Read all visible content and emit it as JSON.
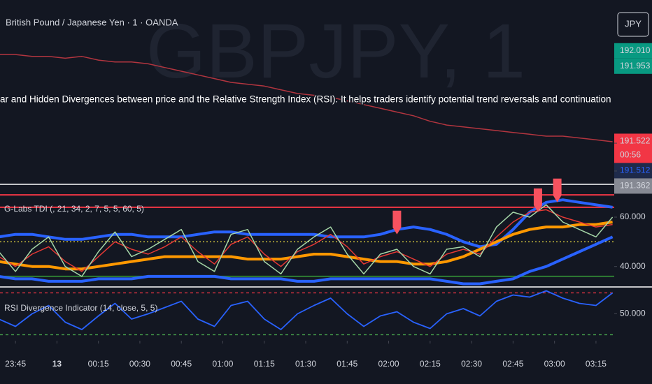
{
  "header": {
    "title": "British Pound / Japanese Yen · 1 · OANDA",
    "currency_button": "JPY",
    "watermark": "GBPJPY, 1",
    "overlay_text": "ar and Hidden Divergences between price and the Relative Strength Index (RSI). It helps traders identify potential trend reversals and continuation patterns by analy"
  },
  "countdown": "00:56",
  "chart_data": [
    {
      "type": "line",
      "xlim": [
        -5.6,
        216.6
      ],
      "ylim": [
        191.294,
        192.284
      ],
      "x": [
        -6,
        0,
        6,
        12,
        18,
        24,
        30,
        36,
        42,
        48,
        54,
        60,
        66,
        72,
        78,
        84,
        90,
        96,
        102,
        108,
        114,
        120,
        126,
        132,
        138,
        144,
        150,
        156,
        162,
        168,
        174,
        180,
        186,
        192,
        198,
        204,
        210,
        216
      ],
      "yticks": [
        {
          "value": 192.01,
          "label": "192.010"
        },
        {
          "value": 191.953,
          "label": "191.953"
        },
        {
          "value": 191.522,
          "label": "191.522"
        },
        {
          "value": 191.512,
          "label": "191.512"
        },
        {
          "value": 191.362,
          "label": "191.362"
        }
      ],
      "ytick_colors": [
        "#089981",
        "#089981",
        "#f23645",
        "#1e2a4a",
        "#868993"
      ],
      "series": [
        {
          "color": "#b2353f",
          "line_width": 1.5,
          "values": [
            191.99,
            191.99,
            191.98,
            191.98,
            191.97,
            191.98,
            191.96,
            191.95,
            191.95,
            191.94,
            191.92,
            191.9,
            191.88,
            191.86,
            191.84,
            191.83,
            191.82,
            191.8,
            191.78,
            191.77,
            191.76,
            191.74,
            191.72,
            191.7,
            191.68,
            191.66,
            191.63,
            191.61,
            191.6,
            191.59,
            191.58,
            191.57,
            191.56,
            191.55,
            191.55,
            191.54,
            191.53,
            191.52
          ]
        }
      ]
    },
    {
      "type": "line",
      "title": "G-Labs TDI (, 21, 34, 2, 7, 5, 5, 60, 5)",
      "xlim": [
        -5.6,
        216.6
      ],
      "ylim": [
        32,
        73
      ],
      "x": [
        -6,
        0,
        6,
        12,
        18,
        24,
        30,
        36,
        42,
        48,
        54,
        60,
        66,
        72,
        78,
        84,
        90,
        96,
        102,
        108,
        114,
        120,
        126,
        132,
        138,
        144,
        150,
        156,
        162,
        168,
        174,
        180,
        186,
        192,
        198,
        204,
        210,
        216
      ],
      "yticks": [
        {
          "value": 60,
          "label": "60.000"
        },
        {
          "value": 40,
          "label": "40.000"
        }
      ],
      "hlines": [
        {
          "value": 69,
          "color": "#f23645",
          "style": "solid"
        },
        {
          "value": 64,
          "color": "#f23645",
          "style": "solid"
        },
        {
          "value": 50,
          "color": "#f5e642",
          "style": "dotted"
        },
        {
          "value": 36,
          "color": "#2e7d32",
          "style": "solid"
        }
      ],
      "series": [
        {
          "color": "#2962ff",
          "line_width": 4,
          "values": [
            52,
            53,
            53,
            52,
            51,
            51,
            52,
            53,
            53,
            52,
            52,
            52,
            53,
            54,
            54,
            53,
            53,
            53,
            53,
            53,
            52,
            52,
            52,
            53,
            55,
            56,
            55,
            53,
            50,
            48,
            49,
            55,
            62,
            66,
            67,
            66,
            65,
            64
          ]
        },
        {
          "color": "#2962ff",
          "line_width": 4,
          "values": [
            36,
            35,
            35,
            34,
            34,
            34,
            35,
            35,
            35,
            36,
            36,
            36,
            36,
            36,
            35,
            35,
            35,
            35,
            34,
            34,
            35,
            35,
            35,
            35,
            35,
            35,
            35,
            34,
            33,
            33,
            34,
            35,
            38,
            40,
            43,
            46,
            49,
            52
          ]
        },
        {
          "color": "#ff9800",
          "line_width": 4,
          "values": [
            42,
            41,
            40,
            40,
            39,
            39,
            40,
            41,
            42,
            43,
            44,
            44,
            44,
            44,
            44,
            43,
            43,
            43,
            44,
            45,
            45,
            44,
            43,
            42,
            42,
            41,
            41,
            42,
            44,
            47,
            50,
            53,
            55,
            56,
            56,
            57,
            57,
            58
          ]
        },
        {
          "color": "#e53935",
          "line_width": 1.5,
          "values": [
            44,
            40,
            45,
            48,
            42,
            38,
            44,
            50,
            47,
            45,
            48,
            52,
            46,
            41,
            49,
            52,
            45,
            40,
            46,
            49,
            53,
            48,
            41,
            44,
            46,
            43,
            40,
            45,
            47,
            45,
            52,
            58,
            62,
            63,
            60,
            58,
            56,
            57
          ]
        },
        {
          "color": "#a5d6a7",
          "line_width": 1.5,
          "values": [
            46,
            38,
            47,
            52,
            40,
            36,
            46,
            54,
            44,
            47,
            51,
            55,
            42,
            38,
            53,
            55,
            42,
            37,
            47,
            52,
            56,
            45,
            37,
            45,
            47,
            40,
            37,
            47,
            48,
            44,
            56,
            62,
            60,
            65,
            58,
            55,
            52,
            60
          ]
        }
      ],
      "signals": {
        "color": "#f7525f",
        "x": [
          138,
          189,
          196
        ],
        "values": [
          53,
          62,
          66
        ]
      }
    },
    {
      "type": "line",
      "title": "RSI Divergence Indicator (14, close, 5, 5)",
      "xlim": [
        -5.6,
        216.6
      ],
      "ylim": [
        25,
        75
      ],
      "x": [
        -6,
        0,
        6,
        12,
        18,
        24,
        30,
        36,
        42,
        48,
        54,
        60,
        66,
        72,
        78,
        84,
        90,
        96,
        102,
        108,
        114,
        120,
        126,
        132,
        138,
        144,
        150,
        156,
        162,
        168,
        174,
        180,
        186,
        192,
        198,
        204,
        210,
        216
      ],
      "yticks": [
        {
          "value": 50,
          "label": "50.000"
        }
      ],
      "hlines": [
        {
          "value": 70,
          "color": "#f23645",
          "style": "dashed"
        },
        {
          "value": 30,
          "color": "#4caf50",
          "style": "dashed"
        }
      ],
      "xticks": [
        {
          "value": 0,
          "label": "23:45"
        },
        {
          "value": 15,
          "label": "13"
        },
        {
          "value": 30,
          "label": "00:15"
        },
        {
          "value": 45,
          "label": "00:30"
        },
        {
          "value": 60,
          "label": "00:45"
        },
        {
          "value": 75,
          "label": "01:00"
        },
        {
          "value": 90,
          "label": "01:15"
        },
        {
          "value": 105,
          "label": "01:30"
        },
        {
          "value": 120,
          "label": "01:45"
        },
        {
          "value": 135,
          "label": "02:00"
        },
        {
          "value": 150,
          "label": "02:15"
        },
        {
          "value": 165,
          "label": "02:30"
        },
        {
          "value": 180,
          "label": "02:45"
        },
        {
          "value": 195,
          "label": "03:00"
        },
        {
          "value": 210,
          "label": "03:15"
        }
      ],
      "series": [
        {
          "color": "#2962ff",
          "line_width": 1.8,
          "values": [
            45,
            38,
            50,
            58,
            42,
            35,
            48,
            60,
            45,
            50,
            56,
            62,
            45,
            38,
            58,
            62,
            45,
            35,
            50,
            58,
            65,
            50,
            38,
            48,
            52,
            42,
            36,
            50,
            55,
            48,
            62,
            68,
            66,
            72,
            65,
            60,
            58,
            70
          ]
        }
      ]
    }
  ]
}
